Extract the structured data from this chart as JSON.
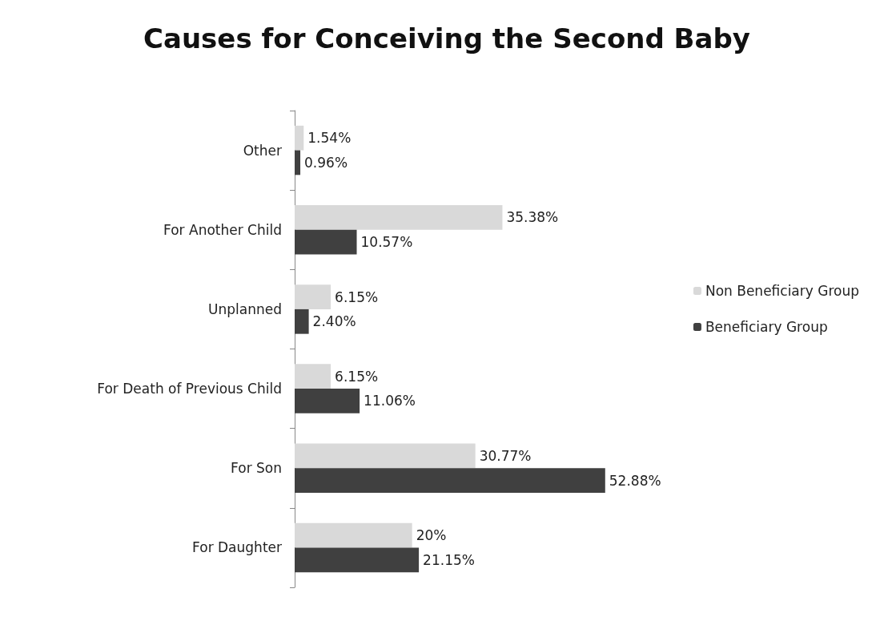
{
  "chart_data": {
    "type": "bar",
    "title": "Causes for Conceiving the Second Baby",
    "orientation": "horizontal",
    "categories": [
      "Other",
      "For Another Child",
      "Unplanned",
      "For Death of Previous Child",
      "For Son",
      "For Daughter"
    ],
    "series": [
      {
        "name": "Non Beneficiary Group",
        "color": "#d9d9d9",
        "values": [
          1.54,
          35.38,
          6.15,
          6.15,
          30.77,
          20
        ],
        "value_labels": [
          "1.54%",
          "35.38%",
          "6.15%",
          "6.15%",
          "30.77%",
          "20%"
        ]
      },
      {
        "name": "Beneficiary Group",
        "color": "#404040",
        "values": [
          0.96,
          10.57,
          2.4,
          11.06,
          52.88,
          21.15
        ],
        "value_labels": [
          "0.96%",
          "10.57%",
          "2.40%",
          "11.06%",
          "52.88%",
          "21.15%"
        ]
      }
    ],
    "grid": false,
    "legend": "right"
  }
}
